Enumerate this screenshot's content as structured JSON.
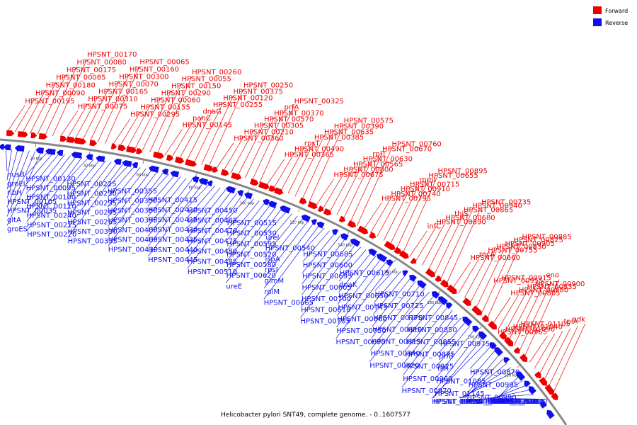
{
  "caption": "Helicobacter pylori SNT49, complete genome. - 0..1607577",
  "legend": [
    {
      "label": "Forward",
      "color": "#ee0000"
    },
    {
      "label": "Reverse",
      "color": "#1010ee"
    }
  ],
  "colors": {
    "forward": "#ee0000",
    "reverse": "#1010ee",
    "backbone": "#888888"
  },
  "scale_ticks": [
    "20 kbp",
    "40 kbp",
    "60 kbp",
    "80 kbp",
    "100 kbp",
    "120 kbp",
    "140 kbp",
    "160 kbp",
    "180 kbp",
    "200 kbp",
    "220 kbp"
  ],
  "forward_labels": [
    "HPSNT_00195",
    "HPSNT_00090",
    "HPSNT_00180",
    "HPSNT_00085",
    "HPSNT_00175",
    "HPSNT_00080",
    "HPSNT_00170",
    "HPSNT_00075",
    "HPSNT_00310",
    "HPSNT_00165",
    "HPSNT_00070",
    "HPSNT_00300",
    "HPSNT_00160",
    "HPSNT_00065",
    "HPSNT_00295",
    "HPSNT_00155",
    "HPSNT_00060",
    "HPSNT_00290",
    "HPSNT_00150",
    "HPSNT_00055",
    "HPSNT_00260",
    "HPSNT_00145",
    "panC",
    "dnaG",
    "HPSNT_00255",
    "HPSNT_00120",
    "HPSNT_00375",
    "HPSNT_00250",
    "HPSNT_00360",
    "HPSNT_00210",
    "HPSNT_00305",
    "HPSNT_00570",
    "HPSNT_00370",
    "prfA",
    "HPSNT_00325",
    "HPSNT_00365",
    "HPSNT_00490",
    "rpsT",
    "HPSNT_00385",
    "HPSNT_00635",
    "HPSNT_00390",
    "HPSNT_00575",
    "HPSNT_00675",
    "HPSNT_00800",
    "HPSNT_00565",
    "HPSNT_00630",
    "rplT",
    "HPSNT_00670",
    "HPSNT_00760",
    "HPSNT_00795",
    "HPSNT_00740",
    "HPSNT_00910",
    "HPSNT_00715",
    "rpmI",
    "HPSNT_00655",
    "HPSNT_00895",
    "infC",
    "HPSNT_00890",
    "HPSNT_00680",
    "thiS",
    "HPSNT_00865",
    "HPSNT_00940",
    "HPSNT_00735",
    "HPSNT_00860",
    "recA",
    "HPSNT_00755",
    "HPSNT_00830",
    "HPSNT_00905",
    "HPSNT_00825",
    "HPSNT_00885",
    "HPSNT_00805",
    "HPSNT_00880",
    "HPSNT_00835",
    "HPSNT_00900",
    "HPSNT_00955",
    "HPSNT_00915",
    "eno",
    "HPSNT_00965",
    "HPSNT_01090",
    "HPSNT_01040",
    "HPSNT_01105",
    "tpiA",
    "ndk"
  ],
  "reverse_labels": [
    "nusB",
    "groEL",
    "ribH",
    "HPSNT_00105",
    "HPSNT_00035",
    "gltA",
    "groES",
    "HPSNT_00130",
    "HPSNT_00095",
    "HPSNT_00100",
    "HPSNT_00110",
    "HPSNT_00240",
    "HPSNT_00215",
    "HPSNT_00220",
    "HPSNT_00225",
    "HPSNT_00230",
    "HPSNT_00235",
    "HPSNT_00245",
    "HPSNT_00265",
    "HPSNT_00330",
    "HPSNT_00335",
    "HPSNT_00355",
    "HPSNT_00350",
    "HPSNT_00380",
    "HPSNT_00395",
    "HPSNT_00400",
    "HPSNT_00405",
    "HPSNT_00410",
    "HPSNT_00415",
    "HPSNT_00420",
    "HPSNT_00425",
    "HPSNT_00430",
    "HPSNT_00435",
    "HPSNT_00440",
    "HPSNT_00445",
    "HPSNT_00450",
    "HPSNT_00465",
    "HPSNT_00470",
    "HPSNT_00475",
    "HPSNT_00480",
    "HPSNT_00485",
    "HPSNT_00510",
    "HPSNT_00515",
    "HPSNT_00530",
    "HPSNT_00595",
    "HPSNT_00520",
    "HPSNT_00580",
    "HPSNT_00620",
    "ureE",
    "ureI",
    "HPSNT_00540",
    "lspA",
    "rpsI",
    "glmM",
    "rplM",
    "HPSNT_00665",
    "HPSNT_00685",
    "HPSNT_00600",
    "HPSNT_00695",
    "HPSNT_00605",
    "HPSNT_00700",
    "HPSNT_00610",
    "HPSNT_00705",
    "HPSNT_00615",
    "dnaK",
    "HPSNT_00650",
    "HPSNT_00745",
    "HPSNT_00660",
    "HPSNT_00750",
    "HPSNT_00690",
    "HPSNT_00710",
    "HPSNT_00725",
    "HPSNT_00770",
    "HPSNT_00810",
    "HPSNT_00815",
    "HPSNT_00840",
    "HPSNT_00820",
    "HPSNT_00845",
    "HPSNT_00850",
    "HPSNT_00855",
    "HPSNT_00875",
    "HPSNT_00925",
    "HPSNT_00960",
    "HPSNT_00970",
    "HPSNT_00975",
    "prfB",
    "fliR",
    "HPSNT_01085",
    "HPSNT_01145",
    "HPSNT_00730",
    "HPSNT_00765",
    "HPSNT_00870",
    "HPSNT_00995",
    "HPSNT_00990",
    "HPSNT_01015",
    "HPSNT_00985",
    "HPSNT_00980",
    "HPSNT_01050",
    "HPSNT_01030",
    "HPSNT_01005",
    "HPSNT_01080",
    "frdB",
    "HPSNT_01130",
    "HPSNT_01140",
    "HPSNT_01200"
  ]
}
